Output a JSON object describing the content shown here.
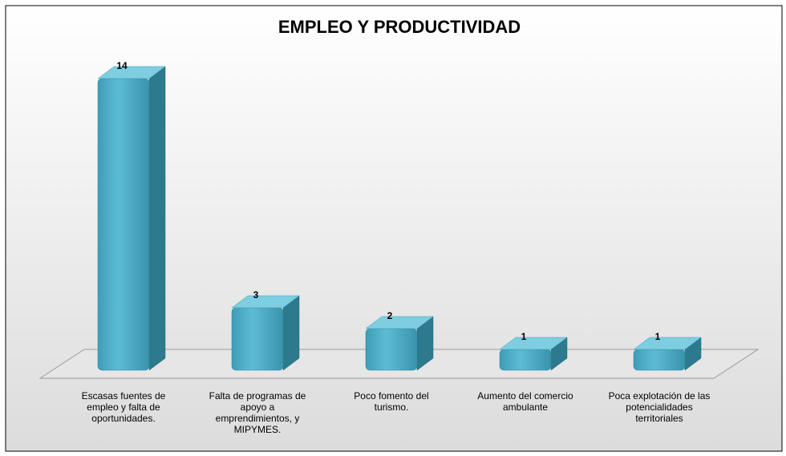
{
  "chart_data": {
    "type": "bar3d",
    "title": "EMPLEO Y PRODUCTIVIDAD",
    "categories": [
      "Escasas fuentes de empleo y falta de oportunidades.",
      "Falta de programas de apoyo a emprendimientos,  y MIPYMES.",
      "Poco fomento del turismo.",
      "Aumento del comercio ambulante",
      "Poca explotación de las potencialidades territoriales"
    ],
    "values": [
      14,
      3,
      2,
      1,
      1
    ],
    "color": "#4bacc6"
  }
}
